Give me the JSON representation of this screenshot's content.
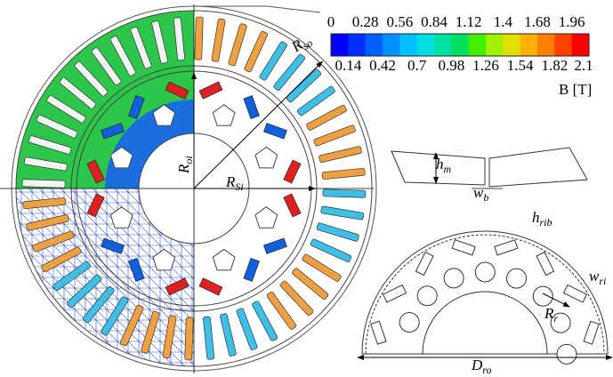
{
  "colorbar": {
    "colors": [
      "#0000ff",
      "#0030ff",
      "#0060ff",
      "#0090ff",
      "#00c0ff",
      "#00e0e0",
      "#00e0a0",
      "#00e060",
      "#40f000",
      "#a0f000",
      "#e0e000",
      "#ffb000",
      "#ff8000",
      "#ff4000",
      "#ff0000"
    ],
    "top_labels": [
      "0",
      "0.28",
      "0.56",
      "0.84",
      "1.12",
      "1.4",
      "1.68",
      "1.96"
    ],
    "bottom_labels": [
      "0.14",
      "0.42",
      "0.7",
      "0.98",
      "1.26",
      "1.54",
      "1.82",
      "2.1"
    ],
    "unit": "B [T]"
  },
  "labels": {
    "r_so": {
      "main": "R",
      "sub": "so"
    },
    "r_oi": {
      "main": "R",
      "sub": "oi"
    },
    "r_si": {
      "main": "R",
      "sub": "Si"
    },
    "h_m": {
      "main": "h",
      "sub": "m"
    },
    "w_b": {
      "main": "w",
      "sub": "b"
    },
    "h_rib": {
      "main": "h",
      "sub": "rib"
    },
    "w_ri": {
      "main": "w",
      "sub": "ri"
    },
    "r_r": {
      "main": "R",
      "sub": "r"
    },
    "d_ro": {
      "main": "D",
      "sub": "ro"
    }
  }
}
